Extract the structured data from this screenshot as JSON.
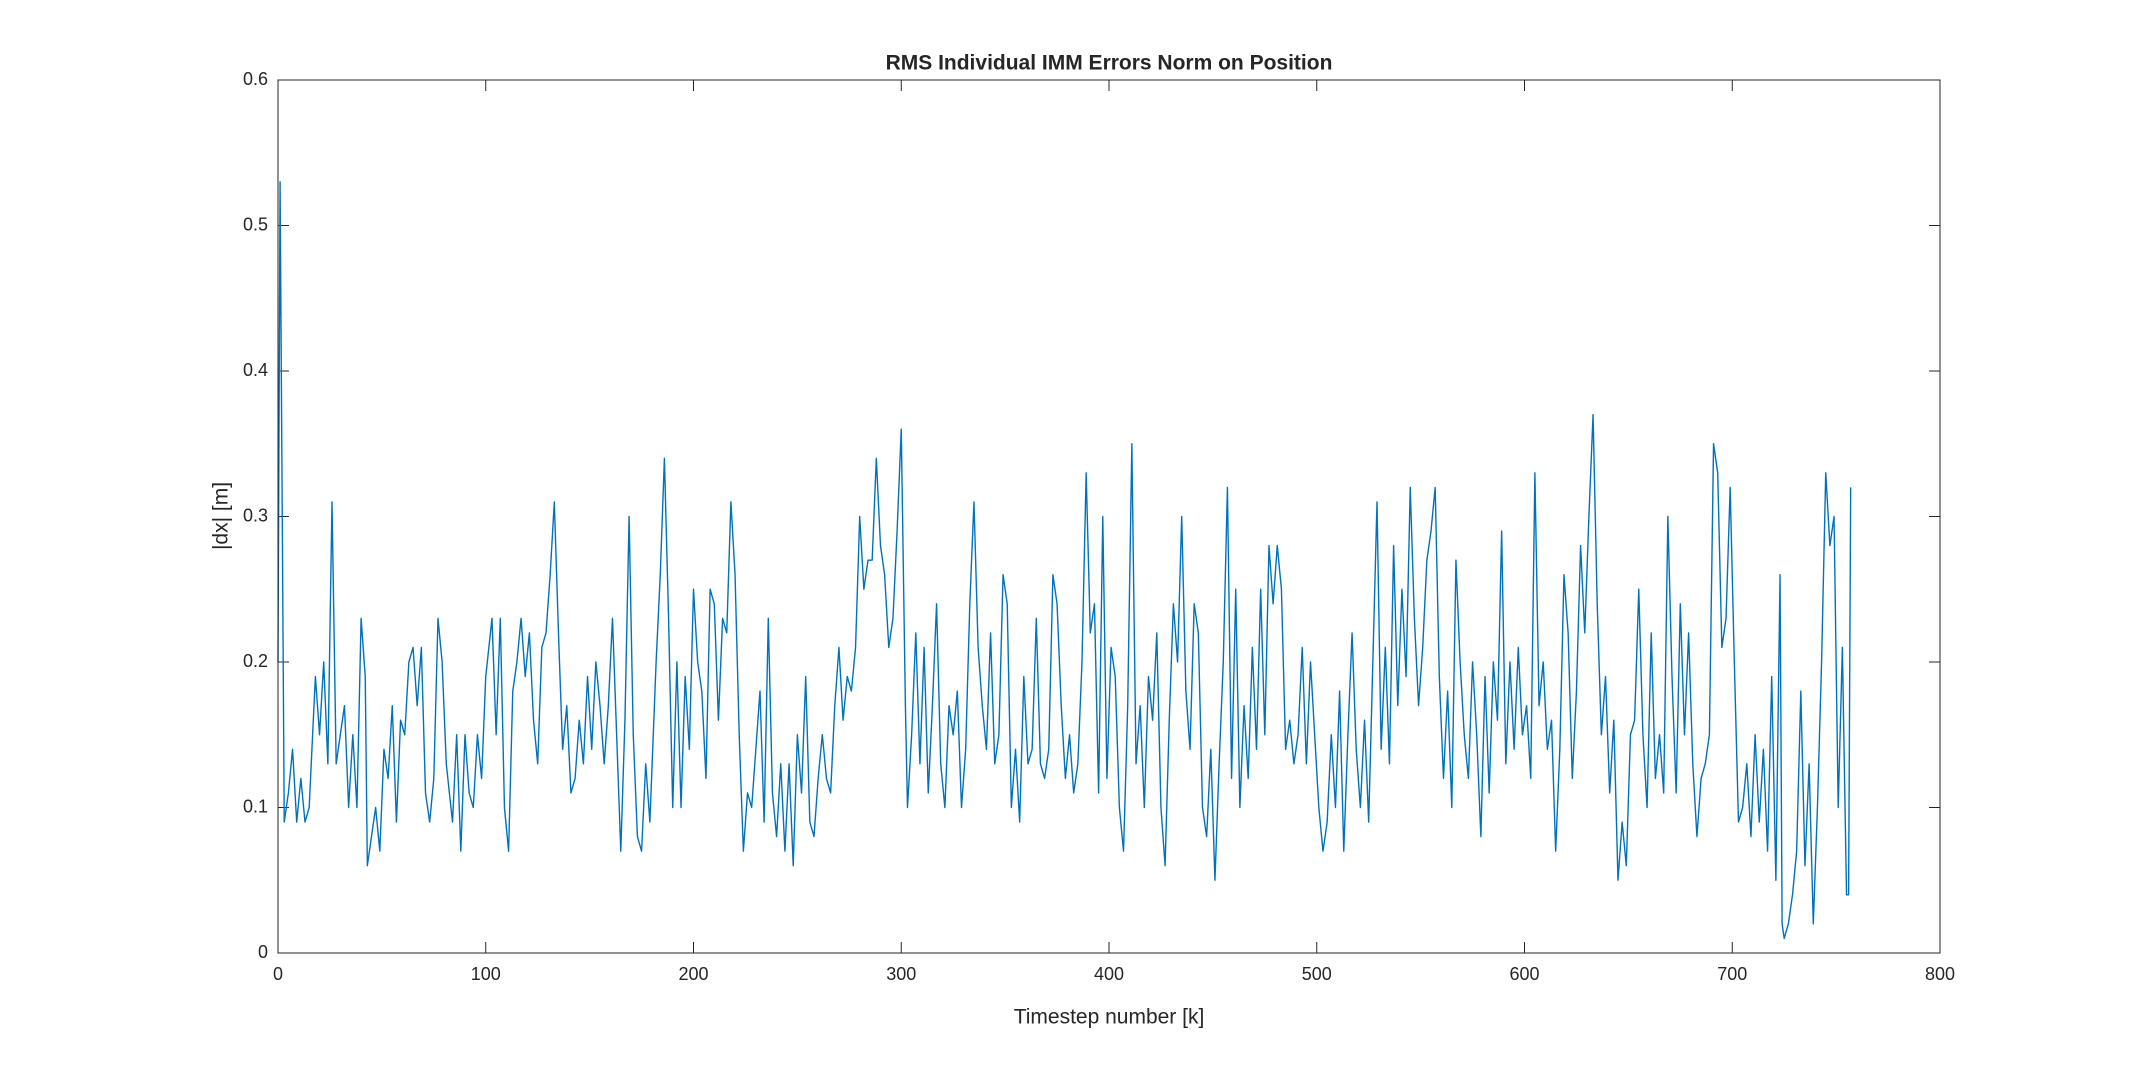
{
  "chart_data": {
    "type": "line",
    "title": "RMS Individual IMM Errors Norm on Position",
    "x_label": "Timestep number [k]",
    "y_label": "|dx| [m]",
    "color": "#0072bd",
    "xlim": [
      0,
      800
    ],
    "ylim": [
      0,
      0.6
    ],
    "xticks": [
      0,
      100,
      200,
      300,
      400,
      500,
      600,
      700,
      800
    ],
    "yticks": [
      0,
      0.1,
      0.2,
      0.3,
      0.4,
      0.5,
      0.6
    ],
    "grid": false,
    "x": [
      0,
      1,
      3,
      5,
      7,
      9,
      11,
      13,
      15,
      18,
      20,
      22,
      24,
      26,
      28,
      30,
      32,
      34,
      36,
      38,
      40,
      42,
      43,
      45,
      47,
      49,
      51,
      53,
      55,
      57,
      59,
      61,
      63,
      65,
      67,
      69,
      71,
      73,
      75,
      77,
      79,
      81,
      84,
      86,
      88,
      90,
      92,
      94,
      96,
      98,
      100,
      103,
      105,
      107,
      109,
      111,
      113,
      115,
      117,
      119,
      121,
      123,
      125,
      127,
      129,
      131,
      133,
      135,
      137,
      139,
      141,
      143,
      145,
      147,
      149,
      151,
      153,
      155,
      157,
      159,
      161,
      163,
      165,
      167,
      169,
      171,
      173,
      175,
      177,
      179,
      182,
      184,
      186,
      188,
      190,
      192,
      194,
      196,
      198,
      200,
      202,
      204,
      206,
      208,
      210,
      212,
      214,
      216,
      218,
      220,
      222,
      224,
      226,
      228,
      230,
      232,
      234,
      236,
      238,
      240,
      242,
      244,
      246,
      248,
      250,
      252,
      254,
      256,
      258,
      260,
      262,
      264,
      266,
      268,
      270,
      272,
      274,
      276,
      278,
      280,
      282,
      284,
      286,
      288,
      290,
      292,
      294,
      296,
      298,
      300,
      302,
      303,
      305,
      307,
      309,
      311,
      313,
      315,
      317,
      319,
      321,
      323,
      325,
      327,
      329,
      331,
      333,
      335,
      337,
      339,
      341,
      343,
      345,
      347,
      349,
      351,
      353,
      355,
      357,
      359,
      361,
      363,
      365,
      367,
      369,
      371,
      373,
      375,
      377,
      379,
      381,
      383,
      385,
      387,
      389,
      391,
      393,
      395,
      397,
      399,
      401,
      403,
      405,
      407,
      409,
      411,
      413,
      415,
      417,
      419,
      421,
      423,
      425,
      427,
      429,
      431,
      433,
      435,
      437,
      439,
      441,
      443,
      445,
      447,
      449,
      451,
      453,
      455,
      457,
      459,
      461,
      463,
      465,
      467,
      469,
      471,
      473,
      475,
      477,
      479,
      481,
      483,
      485,
      487,
      489,
      491,
      493,
      495,
      497,
      499,
      501,
      503,
      505,
      507,
      509,
      511,
      513,
      515,
      517,
      519,
      521,
      523,
      525,
      527,
      529,
      531,
      533,
      535,
      537,
      539,
      541,
      543,
      545,
      547,
      549,
      551,
      553,
      555,
      557,
      559,
      561,
      563,
      565,
      567,
      569,
      571,
      573,
      575,
      577,
      579,
      581,
      583,
      585,
      587,
      589,
      591,
      593,
      595,
      597,
      599,
      601,
      603,
      605,
      607,
      609,
      611,
      613,
      615,
      617,
      619,
      621,
      623,
      625,
      627,
      629,
      631,
      633,
      635,
      637,
      639,
      641,
      643,
      645,
      647,
      649,
      651,
      653,
      655,
      657,
      659,
      661,
      663,
      665,
      667,
      669,
      671,
      673,
      675,
      677,
      679,
      681,
      683,
      685,
      687,
      689,
      691,
      693,
      695,
      697,
      699,
      701,
      703,
      705,
      707,
      709,
      711,
      713,
      715,
      717,
      719,
      721,
      723,
      724,
      725,
      727,
      729,
      731,
      733,
      735,
      737,
      739,
      741,
      743,
      745,
      747,
      749,
      751,
      753,
      755,
      756,
      757
    ],
    "values": [
      0.2,
      0.53,
      0.09,
      0.11,
      0.14,
      0.09,
      0.12,
      0.09,
      0.1,
      0.19,
      0.15,
      0.2,
      0.13,
      0.31,
      0.13,
      0.15,
      0.17,
      0.1,
      0.15,
      0.1,
      0.23,
      0.19,
      0.06,
      0.08,
      0.1,
      0.07,
      0.14,
      0.12,
      0.17,
      0.09,
      0.16,
      0.15,
      0.2,
      0.21,
      0.17,
      0.21,
      0.11,
      0.09,
      0.12,
      0.23,
      0.2,
      0.13,
      0.09,
      0.15,
      0.07,
      0.15,
      0.11,
      0.1,
      0.15,
      0.12,
      0.19,
      0.23,
      0.15,
      0.23,
      0.1,
      0.07,
      0.18,
      0.2,
      0.23,
      0.19,
      0.22,
      0.16,
      0.13,
      0.21,
      0.22,
      0.26,
      0.31,
      0.22,
      0.14,
      0.17,
      0.11,
      0.12,
      0.16,
      0.13,
      0.19,
      0.14,
      0.2,
      0.17,
      0.13,
      0.17,
      0.23,
      0.15,
      0.07,
      0.16,
      0.3,
      0.15,
      0.08,
      0.07,
      0.13,
      0.09,
      0.2,
      0.26,
      0.34,
      0.23,
      0.1,
      0.2,
      0.1,
      0.19,
      0.14,
      0.25,
      0.2,
      0.18,
      0.12,
      0.25,
      0.24,
      0.16,
      0.23,
      0.22,
      0.31,
      0.26,
      0.15,
      0.07,
      0.11,
      0.1,
      0.14,
      0.18,
      0.09,
      0.23,
      0.11,
      0.08,
      0.13,
      0.07,
      0.13,
      0.06,
      0.15,
      0.11,
      0.19,
      0.09,
      0.08,
      0.12,
      0.15,
      0.12,
      0.11,
      0.17,
      0.21,
      0.16,
      0.19,
      0.18,
      0.21,
      0.3,
      0.25,
      0.27,
      0.27,
      0.34,
      0.28,
      0.26,
      0.21,
      0.23,
      0.29,
      0.36,
      0.17,
      0.1,
      0.15,
      0.22,
      0.13,
      0.21,
      0.11,
      0.17,
      0.24,
      0.13,
      0.1,
      0.17,
      0.15,
      0.18,
      0.1,
      0.14,
      0.24,
      0.31,
      0.21,
      0.17,
      0.14,
      0.22,
      0.13,
      0.15,
      0.26,
      0.24,
      0.1,
      0.14,
      0.09,
      0.19,
      0.13,
      0.14,
      0.23,
      0.13,
      0.12,
      0.14,
      0.26,
      0.24,
      0.17,
      0.12,
      0.15,
      0.11,
      0.13,
      0.2,
      0.33,
      0.22,
      0.24,
      0.11,
      0.3,
      0.12,
      0.21,
      0.19,
      0.1,
      0.07,
      0.17,
      0.35,
      0.13,
      0.17,
      0.1,
      0.19,
      0.16,
      0.22,
      0.1,
      0.06,
      0.16,
      0.24,
      0.2,
      0.3,
      0.18,
      0.14,
      0.24,
      0.22,
      0.1,
      0.08,
      0.14,
      0.05,
      0.13,
      0.2,
      0.32,
      0.12,
      0.25,
      0.1,
      0.17,
      0.12,
      0.21,
      0.14,
      0.25,
      0.15,
      0.28,
      0.24,
      0.28,
      0.25,
      0.14,
      0.16,
      0.13,
      0.15,
      0.21,
      0.13,
      0.2,
      0.15,
      0.1,
      0.07,
      0.09,
      0.15,
      0.1,
      0.18,
      0.07,
      0.15,
      0.22,
      0.14,
      0.1,
      0.16,
      0.09,
      0.2,
      0.31,
      0.14,
      0.21,
      0.13,
      0.28,
      0.17,
      0.25,
      0.19,
      0.32,
      0.23,
      0.17,
      0.21,
      0.27,
      0.29,
      0.32,
      0.19,
      0.12,
      0.18,
      0.1,
      0.27,
      0.2,
      0.15,
      0.12,
      0.2,
      0.15,
      0.08,
      0.19,
      0.11,
      0.2,
      0.16,
      0.29,
      0.13,
      0.2,
      0.14,
      0.21,
      0.15,
      0.17,
      0.12,
      0.33,
      0.17,
      0.2,
      0.14,
      0.16,
      0.07,
      0.14,
      0.26,
      0.22,
      0.12,
      0.18,
      0.28,
      0.22,
      0.3,
      0.37,
      0.24,
      0.15,
      0.19,
      0.11,
      0.16,
      0.05,
      0.09,
      0.06,
      0.15,
      0.16,
      0.25,
      0.15,
      0.1,
      0.22,
      0.12,
      0.15,
      0.11,
      0.3,
      0.19,
      0.11,
      0.24,
      0.15,
      0.22,
      0.13,
      0.08,
      0.12,
      0.13,
      0.15,
      0.35,
      0.33,
      0.21,
      0.23,
      0.32,
      0.2,
      0.09,
      0.1,
      0.13,
      0.08,
      0.15,
      0.09,
      0.14,
      0.07,
      0.19,
      0.05,
      0.26,
      0.02,
      0.01,
      0.02,
      0.04,
      0.07,
      0.18,
      0.06,
      0.13,
      0.02,
      0.1,
      0.2,
      0.33,
      0.28,
      0.3,
      0.1,
      0.21,
      0.04,
      0.04,
      0.32
    ]
  }
}
